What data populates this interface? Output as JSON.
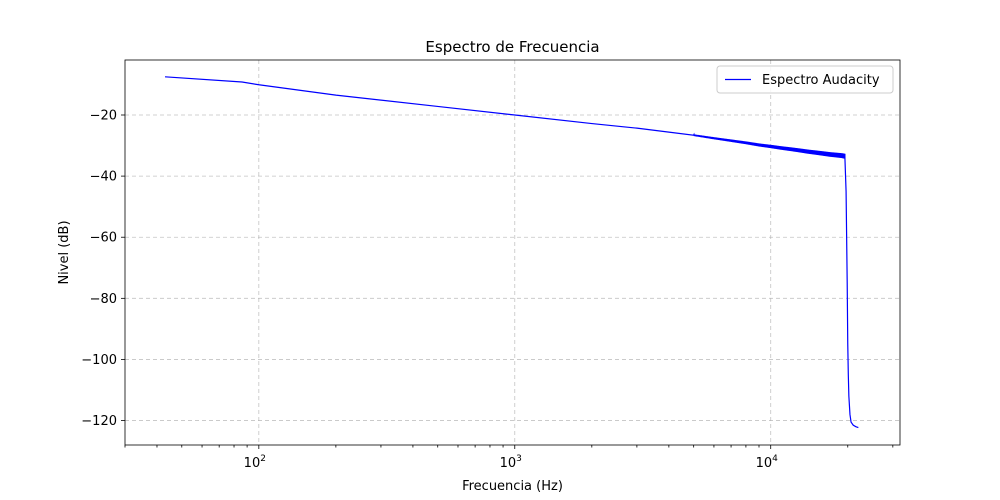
{
  "chart_data": {
    "type": "line",
    "title": "Espectro de Frecuencia",
    "xlabel": "Frecuencia (Hz)",
    "ylabel": "Nivel (dB)",
    "x_scale": "log",
    "xlim": [
      30,
      32000
    ],
    "ylim": [
      -128,
      -2
    ],
    "grid": true,
    "legend_position": "top-right",
    "x_ticks": [
      {
        "value": 100,
        "base": "10",
        "exp": "2"
      },
      {
        "value": 1000,
        "base": "10",
        "exp": "3"
      },
      {
        "value": 10000,
        "base": "10",
        "exp": "4"
      }
    ],
    "y_ticks": [
      -20,
      -40,
      -60,
      -80,
      -100,
      -120
    ],
    "y_tick_labels": [
      "−20",
      "−40",
      "−60",
      "−80",
      "−100",
      "−120"
    ],
    "series": [
      {
        "name": "Espectro Audacity",
        "color": "#0000ff",
        "x": [
          43,
          86,
          100,
          200,
          500,
          1000,
          2000,
          3000,
          4000,
          5000,
          6000,
          7000,
          8000,
          9000,
          10000,
          11000,
          12000,
          13000,
          14000,
          15000,
          16000,
          17000,
          18000,
          19000,
          19500,
          19700,
          19900,
          20000,
          20100,
          20200,
          20400,
          20600,
          21000,
          21500,
          22000
        ],
        "y": [
          -7.5,
          -9.2,
          -10.1,
          -13.5,
          -17.2,
          -20.0,
          -22.8,
          -24.3,
          -25.6,
          -26.6,
          -27.6,
          -28.4,
          -29.1,
          -29.8,
          -30.3,
          -30.8,
          -31.2,
          -31.6,
          -32.0,
          -32.3,
          -32.6,
          -32.9,
          -33.1,
          -33.3,
          -33.5,
          -45.0,
          -75.0,
          -95.0,
          -105.0,
          -112.0,
          -118.0,
          -120.5,
          -121.5,
          -122.0,
          -122.3
        ],
        "noise_from_hz": 5000,
        "noise_amplitude_db": 1.6
      }
    ]
  }
}
